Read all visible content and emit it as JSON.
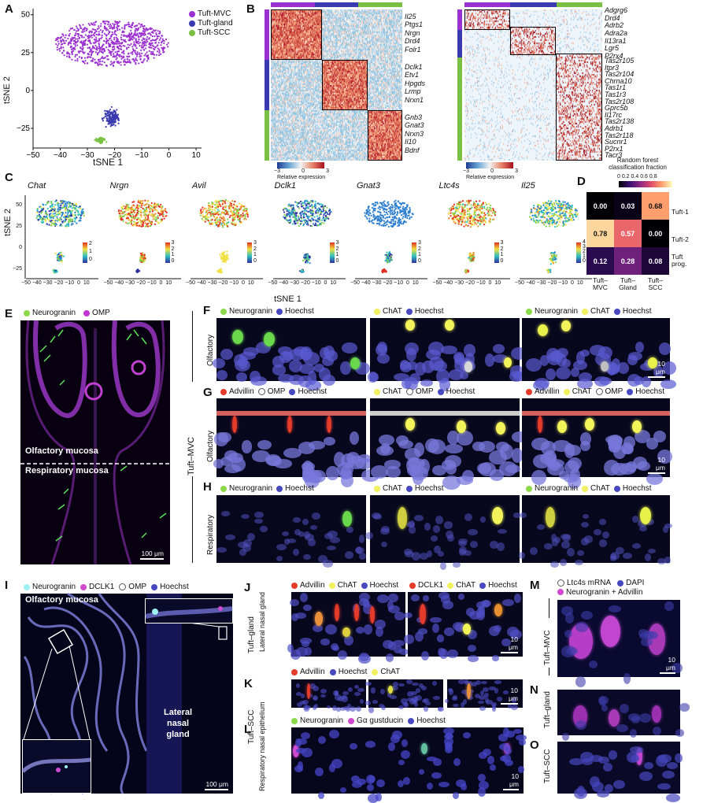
{
  "panels": {
    "A": "A",
    "B": "B",
    "C": "C",
    "D": "D",
    "E": "E",
    "F": "F",
    "G": "G",
    "H": "H",
    "I": "I",
    "J": "J",
    "K": "K",
    "L": "L",
    "M": "M",
    "N": "N",
    "O": "O"
  },
  "panelA": {
    "legend": [
      "Tuft-MVC",
      "Tuft-gland",
      "Tuft-SCC"
    ],
    "colors": {
      "mvc": "#9b30d0",
      "gland": "#3a3ab0",
      "scc": "#7ac143"
    },
    "xlabel": "tSNE 1",
    "ylabel": "tSNE 2",
    "xticks": [
      "−50",
      "−40",
      "−30",
      "−20",
      "−10",
      "0",
      "10"
    ],
    "yticks": [
      "50",
      "25",
      "0",
      "−25"
    ]
  },
  "panelB": {
    "left_genes": [
      "Il25",
      "Ptgs1",
      "Nrgn",
      "Drd4",
      "Folr1",
      "Dclk1",
      "Etv1",
      "Hpgds",
      "Lrmp",
      "Nrxn1",
      "Gnb3",
      "Gnat3",
      "Nrxn3",
      "Il10",
      "Bdnf"
    ],
    "right_genes": [
      "Adgrg6",
      "Drd4",
      "Adrb2",
      "Adra2a",
      "Il13ra1",
      "Lgr5",
      "P2rx4",
      "Tas2r105",
      "Itpr3",
      "Tas2r104",
      "Chrna10",
      "Tas1r1",
      "Tas1r3",
      "Tas2r108",
      "Gprc5b",
      "Il17rc",
      "Tas2r138",
      "Adrb1",
      "Tas2r118",
      "Sucnr1",
      "P2rx1",
      "Tacr3"
    ],
    "colorbar_ticks": [
      "−3",
      "0",
      "3"
    ],
    "colorbar_label": "Relative expression"
  },
  "panelC": {
    "genes": [
      "Chat",
      "Nrgn",
      "Avil",
      "Dclk1",
      "Gnat3",
      "Ltc4s",
      "Il25"
    ],
    "xlabel": "tSNE 1",
    "ylabel": "tSNE 2",
    "xticks": "−50 −40 −30 −20 −10  0  10",
    "yticks": [
      "50",
      "25",
      "0",
      "−25"
    ],
    "scale_ticks": [
      [
        "2",
        "1",
        "0"
      ],
      [
        "3",
        "2",
        "1",
        "0"
      ],
      [
        "3",
        "2",
        "1",
        "0"
      ],
      [
        "3",
        "2",
        "1",
        "0"
      ],
      [
        "3",
        "2",
        "1",
        "0"
      ],
      [
        "3",
        "2",
        "1",
        "0"
      ],
      [
        "4",
        "3",
        "2",
        "1",
        "0"
      ]
    ]
  },
  "panelD": {
    "title_line1": "Random forest",
    "title_line2": "classification fraction",
    "colorbar_ticks": "0 0.2 0.4 0.6 0.8",
    "rows": [
      "Tuft-1",
      "Tuft-2",
      "Tuft prog."
    ],
    "cols": [
      "Tuft–MVC",
      "Tuft–Gland",
      "Tuft–SCC"
    ],
    "values": [
      [
        "0.00",
        "0.03",
        "0.68"
      ],
      [
        "0.78",
        "0.57",
        "0.00"
      ],
      [
        "0.12",
        "0.28",
        "0.08"
      ]
    ]
  },
  "panelE": {
    "legend": [
      "Neurogranin",
      "OMP"
    ],
    "label_top": "Olfactory mucosa",
    "label_bottom": "Respiratory mucosa",
    "scalebar": "100 μm"
  },
  "side_label_mvc": "Tuft–MVC",
  "panelF": {
    "legends": [
      [
        "Neurogranin",
        "Hoechst"
      ],
      [
        "ChAT",
        "Hoechst"
      ],
      [
        "Neurogranin",
        "ChAT",
        "Hoechst"
      ]
    ],
    "side": "Olfactory",
    "scalebar": "10 μm"
  },
  "panelG": {
    "legends": [
      [
        "Advillin",
        "OMP",
        "Hoechst"
      ],
      [
        "ChAT",
        "OMP",
        "Hoechst"
      ],
      [
        "Advillin",
        "ChAT",
        "OMP",
        "Hoechst"
      ]
    ],
    "side": "Olfactory",
    "scalebar": "10 μm"
  },
  "panelH": {
    "legends": [
      [
        "Neurogranin",
        "Hoechst"
      ],
      [
        "ChAT",
        "Hoechst"
      ],
      [
        "Neurogranin",
        "ChAT",
        "Hoechst"
      ]
    ],
    "side": "Respiratory"
  },
  "panelI": {
    "legend": [
      "Neurogranin",
      "DCLK1",
      "OMP",
      "Hoechst"
    ],
    "label_top": "Olfactory mucosa",
    "label_gland_1": "Lateral",
    "label_gland_2": "nasal",
    "label_gland_3": "gland",
    "scalebar": "100 μm"
  },
  "panelJ": {
    "legends": [
      [
        "Advillin",
        "ChAT",
        "Hoechst"
      ],
      [
        "DCLK1",
        "ChAT",
        "Hoechst"
      ]
    ],
    "side1": "Tuft–gland",
    "side2": "Lateral nasal gland",
    "scalebar": "10 μm"
  },
  "panelK": {
    "legend": [
      "Advillin",
      "Hoechst",
      "ChAT"
    ],
    "scalebar": "10 μm"
  },
  "panelL": {
    "legend": [
      "Neurogranin",
      "Gα gustducin",
      "Hoechst"
    ],
    "side1": "Tuft–SCC",
    "side2": "Respiratory nasal epithelium",
    "scalebar": "10 μm"
  },
  "panelM": {
    "legend": [
      "Ltc4s mRNA",
      "DAPI",
      "Neurogranin + Advillin"
    ],
    "side": "Tuft–MVC",
    "scalebar": "10 μm"
  },
  "panelN": {
    "side": "Tuft–gland"
  },
  "panelO": {
    "side": "Tuft–SCC"
  }
}
